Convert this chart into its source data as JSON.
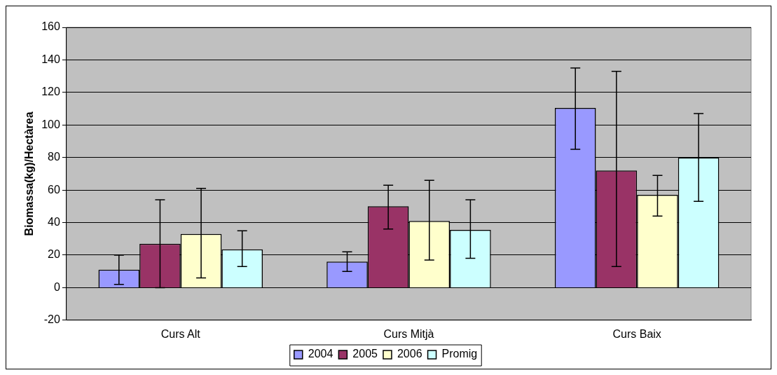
{
  "chart_data": {
    "type": "bar",
    "ylabel": "Biomassa(kg)/Hectàrea",
    "categories": [
      "Curs Alt",
      "Curs Mitjà",
      "Curs Baix"
    ],
    "ylim": [
      -20,
      160
    ],
    "yticks": [
      -20,
      0,
      20,
      40,
      60,
      80,
      100,
      120,
      140,
      160
    ],
    "grid": "y",
    "legend": "bottom",
    "series": [
      {
        "name": "2004",
        "color": "#9999ff",
        "values": [
          11,
          16,
          110.5
        ],
        "errors": [
          [
            2,
            20
          ],
          [
            10,
            22
          ],
          [
            85,
            135
          ]
        ]
      },
      {
        "name": "2005",
        "color": "#993366",
        "values": [
          27,
          50,
          72
        ],
        "errors": [
          [
            0,
            54
          ],
          [
            36,
            63
          ],
          [
            13,
            133
          ]
        ]
      },
      {
        "name": "2006",
        "color": "#ffffcc",
        "values": [
          33,
          41,
          57
        ],
        "errors": [
          [
            6,
            61
          ],
          [
            17,
            66
          ],
          [
            44,
            69
          ]
        ]
      },
      {
        "name": "Promig",
        "color": "#ccffff",
        "values": [
          23.5,
          35.5,
          80
        ],
        "errors": [
          [
            13,
            35
          ],
          [
            18,
            54
          ],
          [
            53,
            107
          ]
        ]
      }
    ]
  }
}
